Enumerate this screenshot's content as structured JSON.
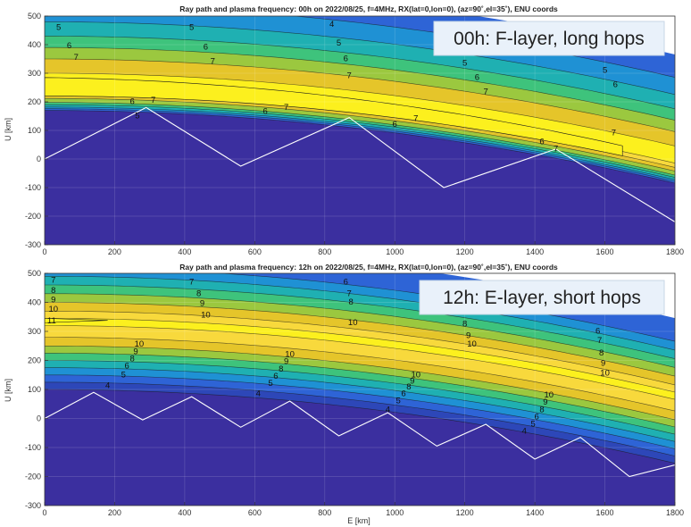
{
  "chart_data": [
    {
      "type": "heatmap",
      "title": "Ray path and plasma frequency: 00h on 2022/08/25, f=4MHz, RX(lat=0,lon=0), (az=90˚,el=35˚), ENU coords",
      "callout": "00h: F-layer, long hops",
      "xlabel": "",
      "ylabel": "U [km]",
      "xlim": [
        0,
        1800
      ],
      "ylim": [
        -300,
        500
      ],
      "x_ticks": [
        0,
        200,
        400,
        600,
        800,
        1000,
        1200,
        1400,
        1600,
        1800
      ],
      "y_ticks": [
        500,
        400,
        300,
        200,
        100,
        0,
        -100,
        -200,
        -300
      ],
      "grid": true,
      "contour_levels_MHz": [
        5,
        6,
        7,
        7,
        7,
        6,
        5
      ],
      "contour_base_heights_km": [
        460,
        400,
        350,
        220,
        210,
        195,
        180
      ],
      "peak_contour_MHz": 7,
      "contour_labels": [
        {
          "text": "5",
          "x": 40,
          "u": 460
        },
        {
          "text": "6",
          "x": 70,
          "u": 395
        },
        {
          "text": "7",
          "x": 90,
          "u": 355
        },
        {
          "text": "5",
          "x": 420,
          "u": 460
        },
        {
          "text": "6",
          "x": 460,
          "u": 390
        },
        {
          "text": "7",
          "x": 480,
          "u": 340
        },
        {
          "text": "4",
          "x": 820,
          "u": 470
        },
        {
          "text": "5",
          "x": 840,
          "u": 405
        },
        {
          "text": "6",
          "x": 860,
          "u": 350
        },
        {
          "text": "7",
          "x": 870,
          "u": 290
        },
        {
          "text": "5",
          "x": 1200,
          "u": 335
        },
        {
          "text": "6",
          "x": 1235,
          "u": 285
        },
        {
          "text": "7",
          "x": 1260,
          "u": 235
        },
        {
          "text": "7",
          "x": 1060,
          "u": 140
        },
        {
          "text": "6",
          "x": 1000,
          "u": 120
        },
        {
          "text": "7",
          "x": 310,
          "u": 205
        },
        {
          "text": "6",
          "x": 250,
          "u": 200
        },
        {
          "text": "7",
          "x": 690,
          "u": 180
        },
        {
          "text": "6",
          "x": 630,
          "u": 165
        },
        {
          "text": "5",
          "x": 265,
          "u": 150
        },
        {
          "text": "6",
          "x": 1420,
          "u": 60
        },
        {
          "text": "7",
          "x": 1460,
          "u": 35
        },
        {
          "text": "7",
          "x": 1625,
          "u": 90
        },
        {
          "text": "4",
          "x": 1575,
          "u": 380
        },
        {
          "text": "5",
          "x": 1600,
          "u": 310
        },
        {
          "text": "6",
          "x": 1630,
          "u": 260
        }
      ],
      "ray_path": {
        "x_km": [
          0,
          290,
          560,
          870,
          1140,
          1460,
          1800
        ],
        "u_km": [
          0,
          180,
          -25,
          145,
          -100,
          35,
          -220
        ]
      }
    },
    {
      "type": "heatmap",
      "title": "Ray path and plasma frequency: 12h on 2022/08/25, f=4MHz, RX(lat=0,lon=0), (az=90˚,el=35˚), ENU coords",
      "callout": "12h: E-layer, short hops",
      "xlabel": "E [km]",
      "ylabel": "U [km]",
      "xlim": [
        0,
        1800
      ],
      "ylim": [
        -300,
        500
      ],
      "x_ticks": [
        0,
        200,
        400,
        600,
        800,
        1000,
        1200,
        1400,
        1600,
        1800
      ],
      "y_ticks": [
        500,
        400,
        300,
        200,
        100,
        0,
        -100,
        -200,
        -300
      ],
      "grid": true,
      "peak_contour_MHz": 11,
      "contour_labels": [
        {
          "text": "7",
          "x": 25,
          "u": 475
        },
        {
          "text": "8",
          "x": 25,
          "u": 440
        },
        {
          "text": "9",
          "x": 25,
          "u": 408
        },
        {
          "text": "10",
          "x": 25,
          "u": 375
        },
        {
          "text": "11",
          "x": 20,
          "u": 335
        },
        {
          "text": "7",
          "x": 420,
          "u": 470
        },
        {
          "text": "8",
          "x": 440,
          "u": 430
        },
        {
          "text": "9",
          "x": 450,
          "u": 395
        },
        {
          "text": "10",
          "x": 460,
          "u": 355
        },
        {
          "text": "6",
          "x": 860,
          "u": 470
        },
        {
          "text": "7",
          "x": 870,
          "u": 430
        },
        {
          "text": "8",
          "x": 875,
          "u": 400
        },
        {
          "text": "10",
          "x": 880,
          "u": 330
        },
        {
          "text": "8",
          "x": 1200,
          "u": 325
        },
        {
          "text": "9",
          "x": 1210,
          "u": 285
        },
        {
          "text": "10",
          "x": 1220,
          "u": 255
        },
        {
          "text": "6",
          "x": 1580,
          "u": 300
        },
        {
          "text": "7",
          "x": 1585,
          "u": 268
        },
        {
          "text": "8",
          "x": 1590,
          "u": 225
        },
        {
          "text": "9",
          "x": 1595,
          "u": 190
        },
        {
          "text": "10",
          "x": 1600,
          "u": 155
        },
        {
          "text": "10",
          "x": 270,
          "u": 255
        },
        {
          "text": "9",
          "x": 260,
          "u": 230
        },
        {
          "text": "8",
          "x": 250,
          "u": 205
        },
        {
          "text": "6",
          "x": 235,
          "u": 180
        },
        {
          "text": "5",
          "x": 225,
          "u": 150
        },
        {
          "text": "4",
          "x": 180,
          "u": 112
        },
        {
          "text": "10",
          "x": 700,
          "u": 220
        },
        {
          "text": "9",
          "x": 690,
          "u": 195
        },
        {
          "text": "8",
          "x": 675,
          "u": 170
        },
        {
          "text": "6",
          "x": 660,
          "u": 145
        },
        {
          "text": "5",
          "x": 645,
          "u": 120
        },
        {
          "text": "4",
          "x": 610,
          "u": 85
        },
        {
          "text": "10",
          "x": 1060,
          "u": 150
        },
        {
          "text": "9",
          "x": 1050,
          "u": 128
        },
        {
          "text": "8",
          "x": 1040,
          "u": 108
        },
        {
          "text": "6",
          "x": 1025,
          "u": 85
        },
        {
          "text": "5",
          "x": 1010,
          "u": 60
        },
        {
          "text": "4",
          "x": 980,
          "u": 30
        },
        {
          "text": "10",
          "x": 1440,
          "u": 80
        },
        {
          "text": "9",
          "x": 1430,
          "u": 55
        },
        {
          "text": "8",
          "x": 1420,
          "u": 30
        },
        {
          "text": "6",
          "x": 1405,
          "u": 5
        },
        {
          "text": "5",
          "x": 1395,
          "u": -20
        },
        {
          "text": "4",
          "x": 1370,
          "u": -45
        }
      ],
      "ray_path": {
        "x_km": [
          0,
          140,
          280,
          420,
          560,
          700,
          840,
          980,
          1120,
          1260,
          1400,
          1530,
          1670,
          1800
        ],
        "u_km": [
          0,
          90,
          -5,
          75,
          -30,
          60,
          -60,
          20,
          -95,
          -20,
          -140,
          -65,
          -200,
          -160
        ]
      }
    }
  ],
  "colors": {
    "below_layer": "#3b2f9f",
    "band_scale": [
      "#3b2f9f",
      "#2e64d6",
      "#1f91d4",
      "#1fb0b2",
      "#3ec37c",
      "#9bc83f",
      "#e5c52a",
      "#f8d93c",
      "#fcf01e"
    ],
    "ray": "#ffffff"
  }
}
